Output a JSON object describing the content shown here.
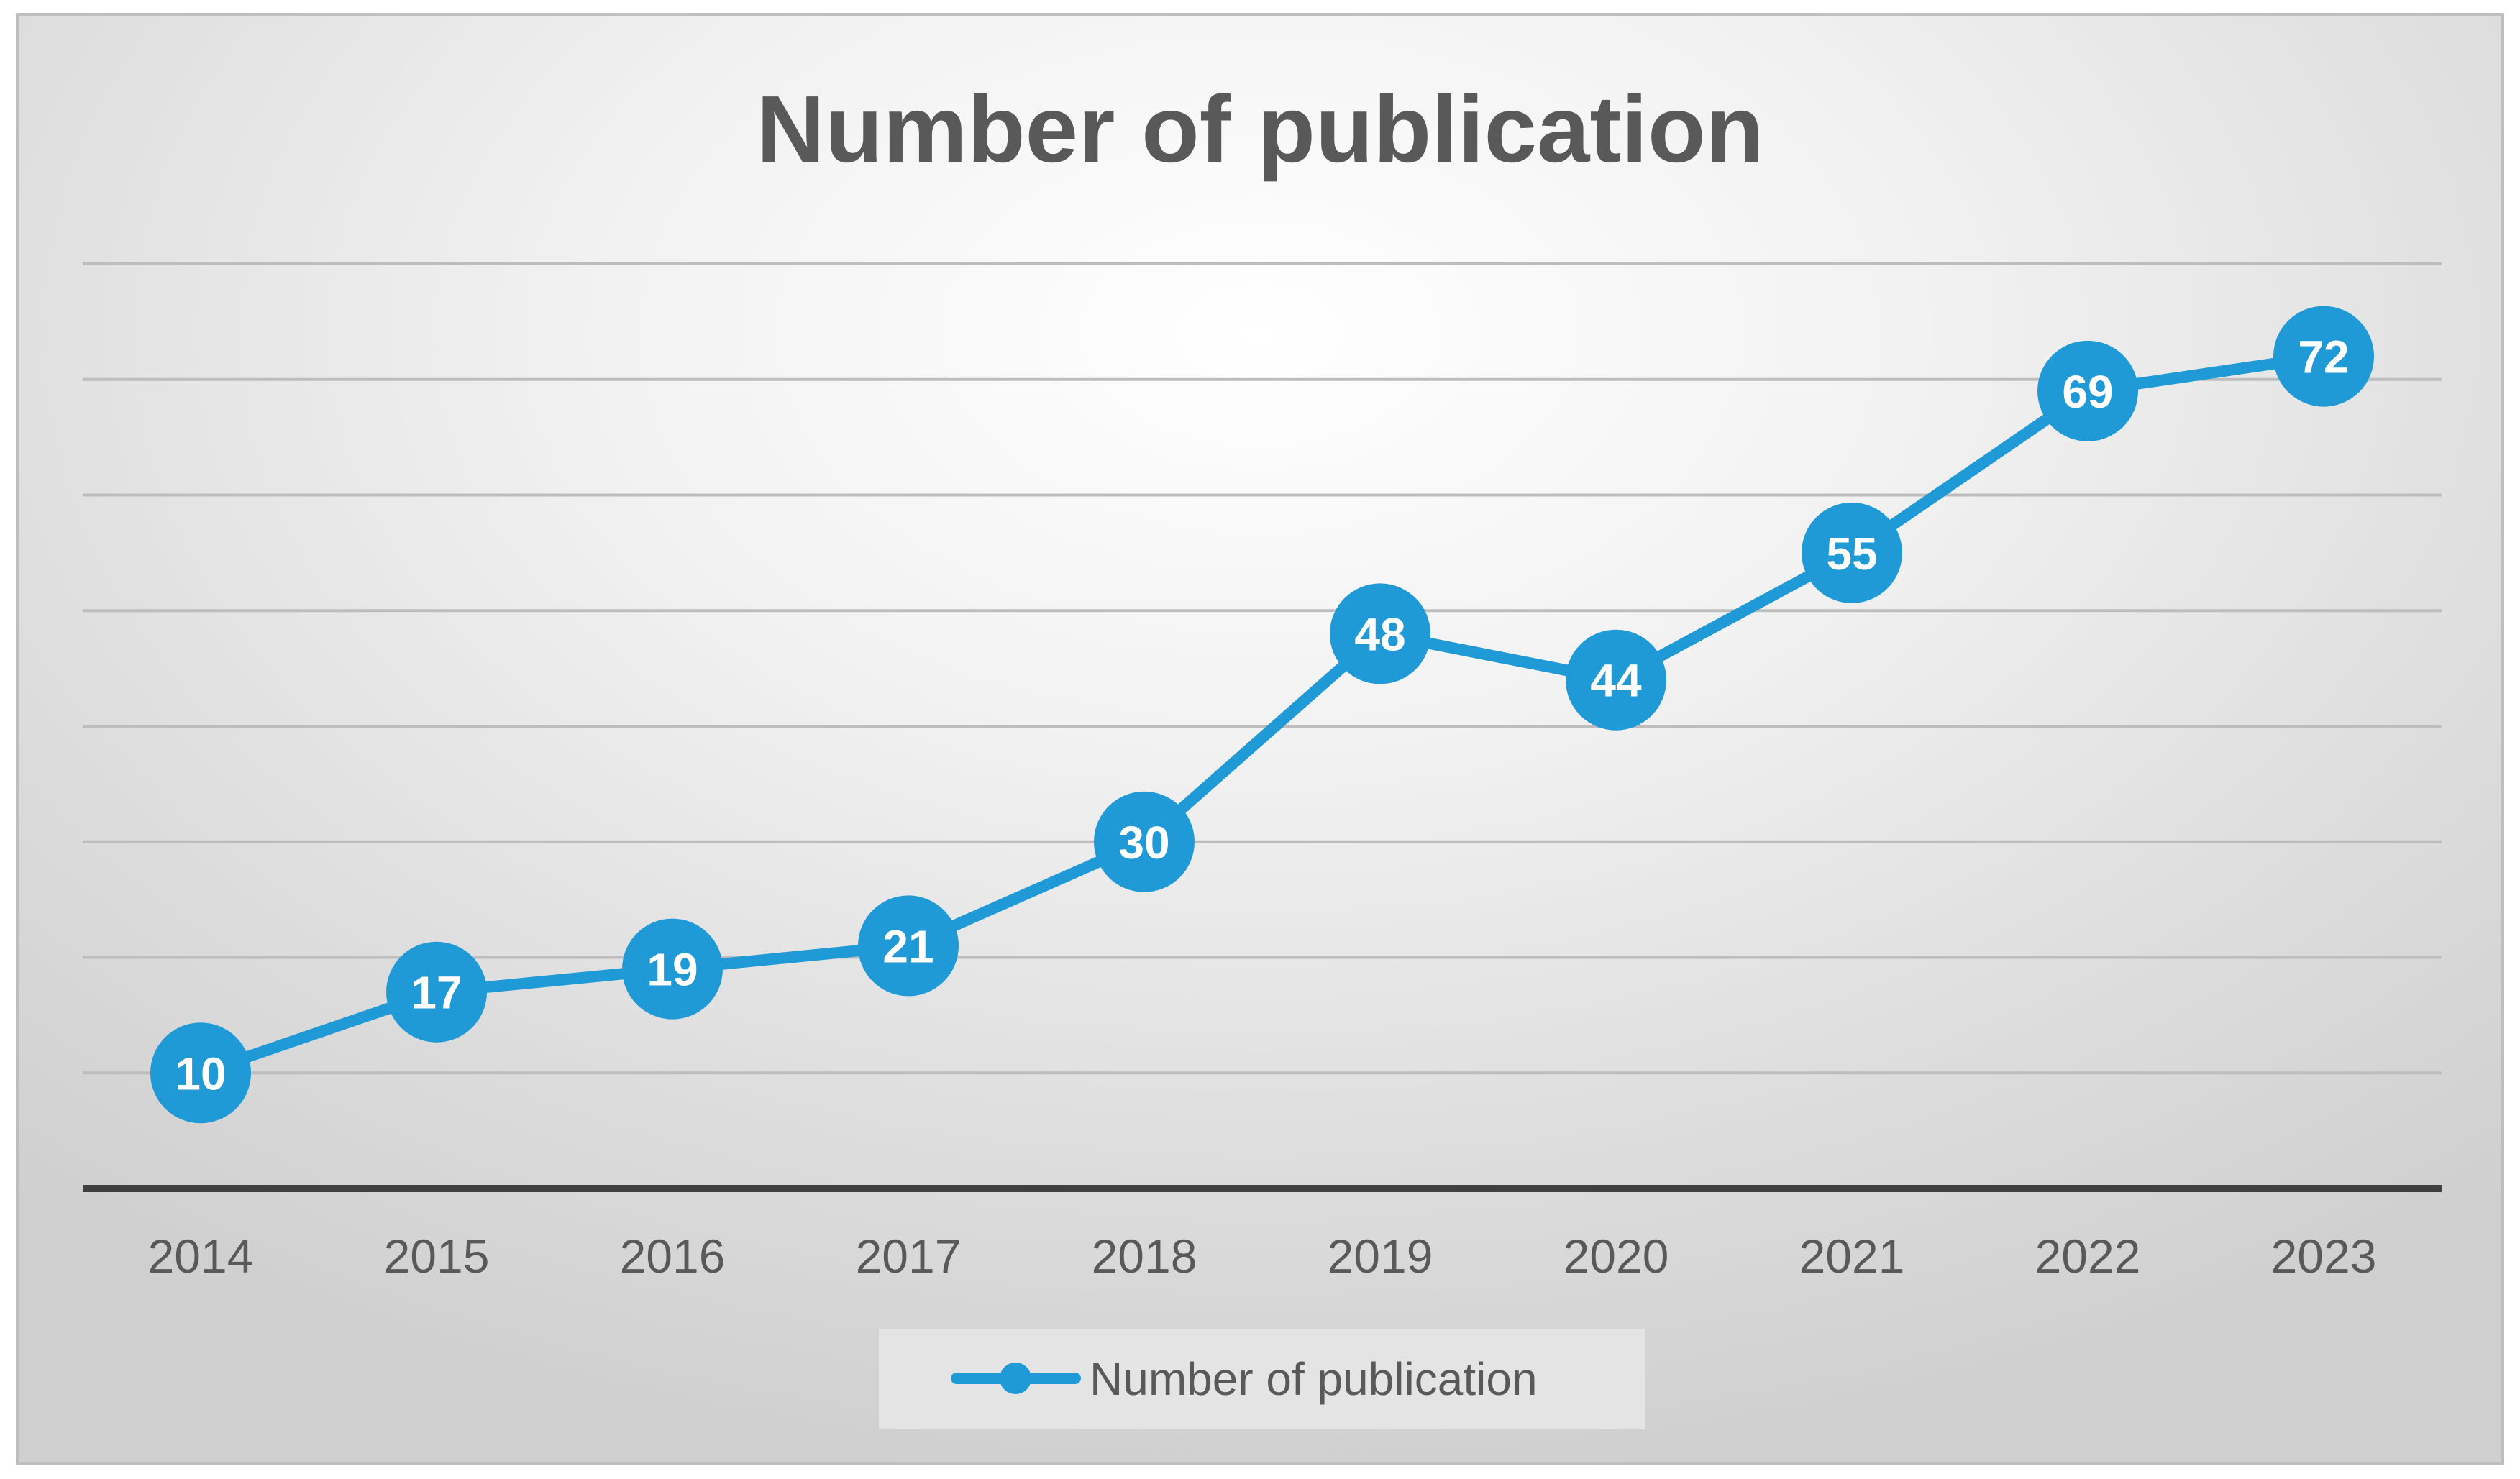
{
  "chart_data": {
    "type": "line",
    "title": "Number of publication",
    "xlabel": "",
    "ylabel": "",
    "categories": [
      "2014",
      "2015",
      "2016",
      "2017",
      "2018",
      "2019",
      "2020",
      "2021",
      "2022",
      "2023"
    ],
    "series": [
      {
        "name": "Number of publication",
        "values": [
          10,
          17,
          19,
          21,
          30,
          48,
          44,
          55,
          69,
          72
        ],
        "color": "#1f9ad6"
      }
    ],
    "ylim": [
      0,
      80
    ],
    "gridlines": true,
    "y_tick_labels_visible": false,
    "data_labels": true,
    "legend_position": "bottom"
  },
  "colors": {
    "series": "#1f9ad6",
    "gridline": "#bdbdbd",
    "axis": "#404040",
    "text": "#595959"
  }
}
